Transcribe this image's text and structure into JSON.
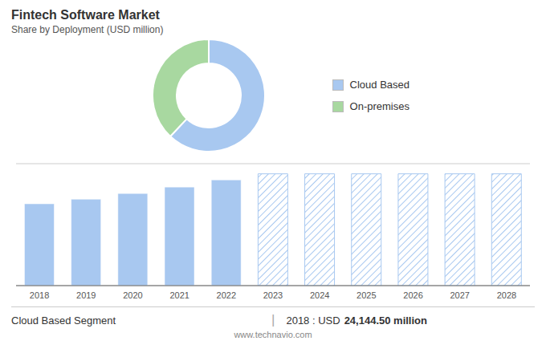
{
  "chart_data": [
    {
      "type": "donut",
      "title": "Fintech Software Market",
      "subtitle": "Share by Deployment (USD million)",
      "categories": [
        "Cloud Based",
        "On-premises"
      ],
      "values": [
        62,
        38
      ],
      "colors": [
        "#a8c8f0",
        "#a8d8a0"
      ],
      "legend": "right"
    },
    {
      "type": "bar",
      "categories": [
        "2018",
        "2019",
        "2020",
        "2021",
        "2022",
        "2023",
        "2024",
        "2025",
        "2026",
        "2027",
        "2028"
      ],
      "series": [
        {
          "color": "#a8c8f0",
          "values": [
            24144.5,
            25500,
            27200,
            29100,
            31200,
            null,
            null,
            null,
            null,
            null,
            null
          ]
        },
        {
          "color": "#a8c8f0",
          "values": [
            null,
            null,
            null,
            null,
            null,
            33000,
            33000,
            33000,
            33000,
            33000,
            33000
          ]
        }
      ],
      "stacked": true,
      "ylim": [
        0,
        36000
      ],
      "yticks": [
        0,
        7200,
        14400,
        21600,
        28800,
        36000
      ],
      "grid": true,
      "tick_labels": "x",
      "annotations": [
        "Cloud Based Segment",
        "|",
        "2018 : USD",
        "24,144.50 million",
        "www.technavio.com"
      ]
    }
  ]
}
